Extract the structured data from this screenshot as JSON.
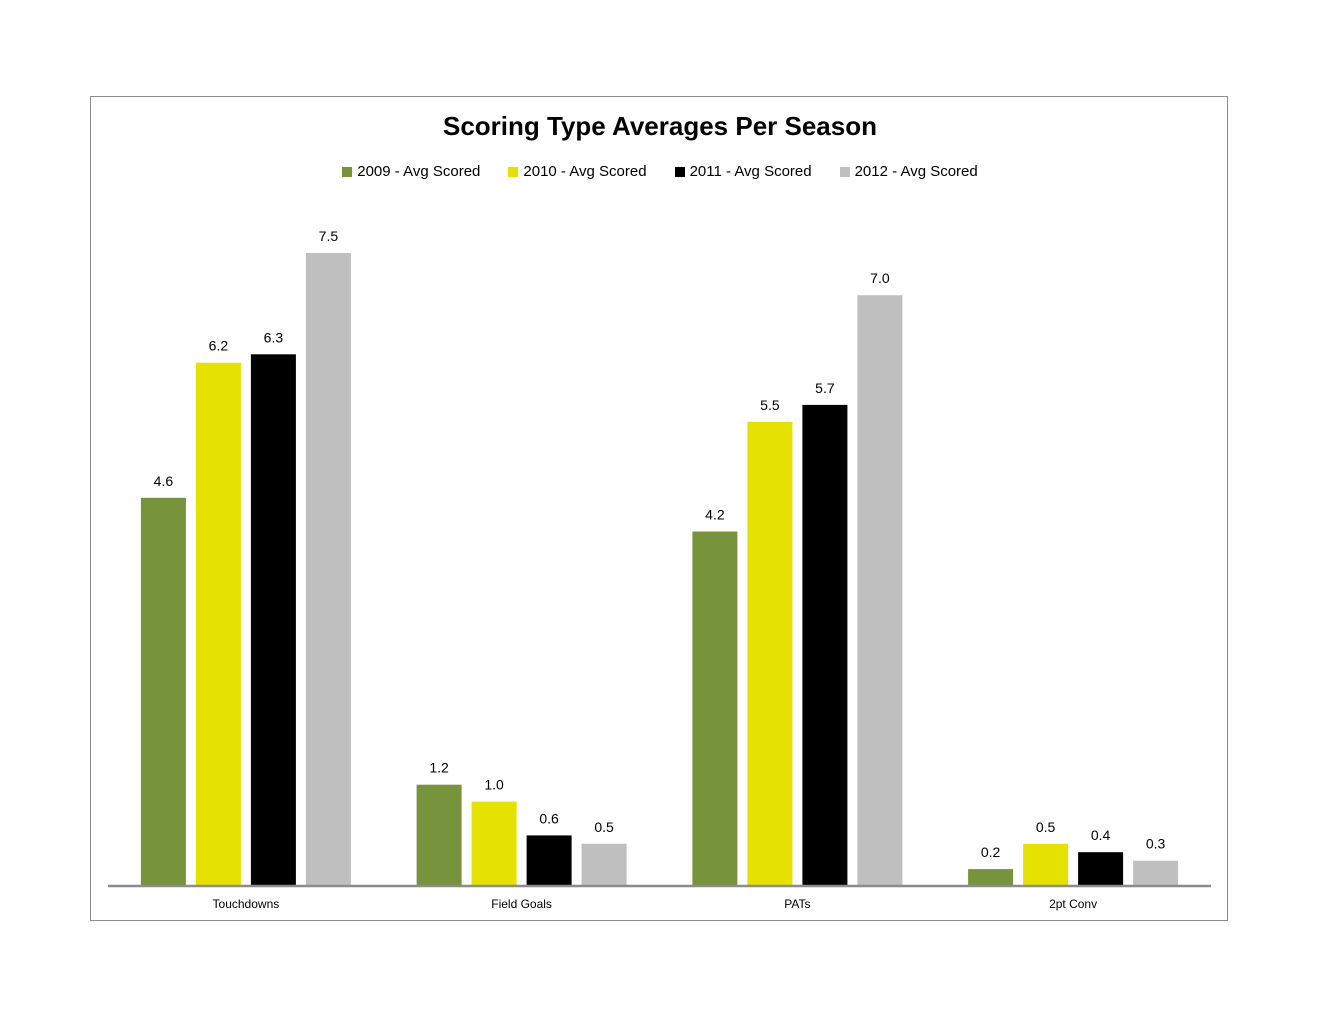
{
  "chart_data": {
    "type": "bar",
    "title": "Scoring Type Averages Per Season",
    "categories": [
      "Touchdowns",
      "Field Goals",
      "PATs",
      "2pt Conv"
    ],
    "series": [
      {
        "name": "2009 - Avg Scored",
        "color": "#77933c",
        "values": [
          4.6,
          1.2,
          4.2,
          0.2
        ],
        "labels": [
          "4.6",
          "1.2",
          "4.2",
          "0.2"
        ]
      },
      {
        "name": "2010 - Avg Scored",
        "color": "#e5e100",
        "values": [
          6.2,
          1.0,
          5.5,
          0.5
        ],
        "labels": [
          "6.2",
          "1.0",
          "5.5",
          "0.5"
        ]
      },
      {
        "name": "2011 - Avg Scored",
        "color": "#000000",
        "values": [
          6.3,
          0.6,
          5.7,
          0.4
        ],
        "labels": [
          "6.3",
          "0.6",
          "5.7",
          "0.4"
        ]
      },
      {
        "name": "2012 - Avg Scored",
        "color": "#bfbfbf",
        "values": [
          7.5,
          0.5,
          7.0,
          0.3
        ],
        "labels": [
          "7.5",
          "0.5",
          "7.0",
          "0.3"
        ]
      }
    ],
    "xlabel": "",
    "ylabel": "",
    "ylim": [
      0,
      7.5
    ],
    "grid": false,
    "legend_position": "top"
  }
}
